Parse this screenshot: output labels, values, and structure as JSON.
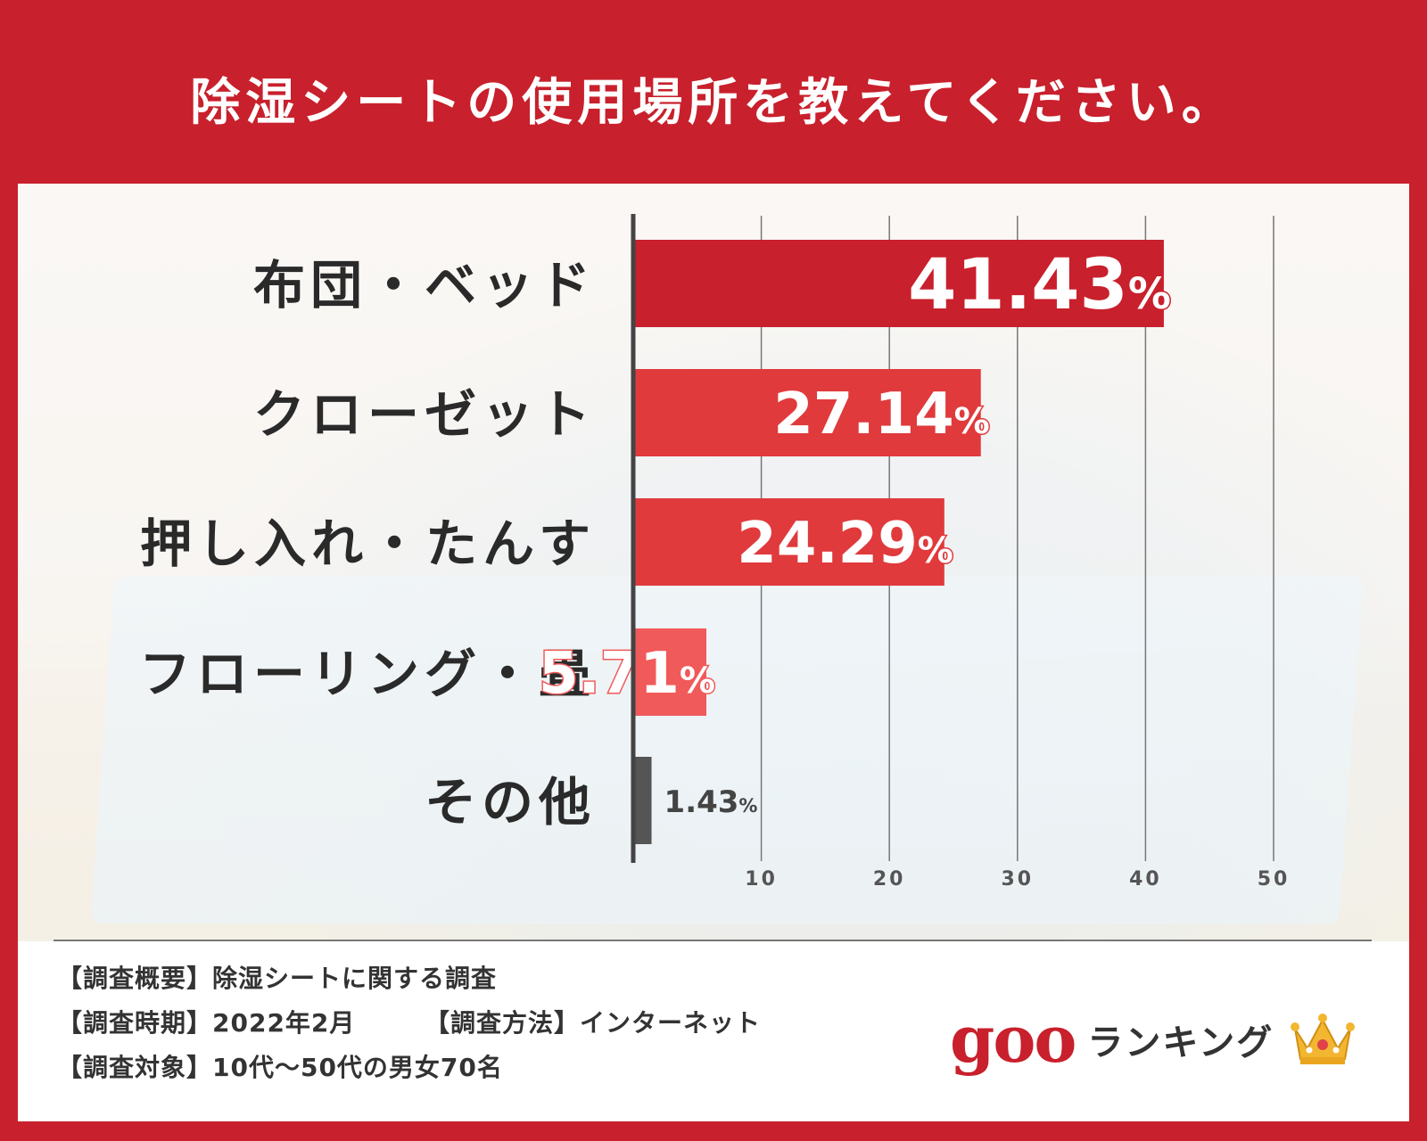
{
  "title": "除湿シートの使用場所を教えてください。",
  "chart_data": {
    "type": "bar",
    "orientation": "horizontal",
    "categories": [
      "布団・ベッド",
      "クローゼット",
      "押し入れ・たんす",
      "フローリング・畳",
      "その他"
    ],
    "values": [
      41.43,
      27.14,
      24.29,
      5.71,
      1.43
    ],
    "value_labels": [
      "41.43",
      "27.14",
      "24.29",
      "5.71",
      "1.43"
    ],
    "unit": "%",
    "xlim": [
      0,
      50
    ],
    "xticks": [
      10,
      20,
      30,
      40,
      50
    ],
    "grid": true,
    "bar_colors": [
      "#c8202c",
      "#e03a3c",
      "#e03a3c",
      "#f05a5a",
      "#555555"
    ]
  },
  "footnotes": {
    "overview": "【調査概要】除湿シートに関する調査",
    "period": "【調査時期】2022年2月",
    "method": "【調査方法】インターネット",
    "target": "【調査対象】10代～50代の男女70名"
  },
  "logo": {
    "brand": "goo",
    "label": "ランキング",
    "brand_color": "#c8202c",
    "icon": "crown-icon"
  }
}
